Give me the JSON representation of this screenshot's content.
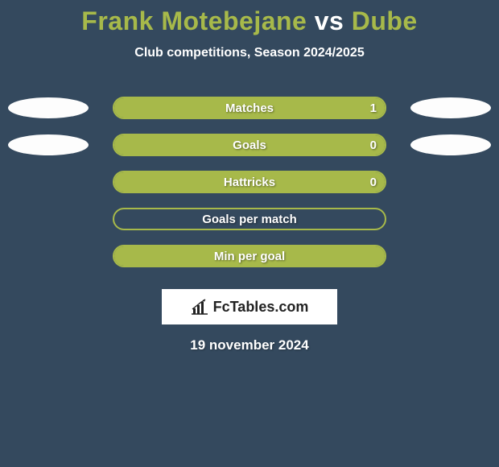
{
  "title": {
    "player1": "Frank Motebejane",
    "vs": "vs",
    "player2": "Dube",
    "player1_color": "#a7b94a",
    "vs_color": "#ffffff",
    "player2_color": "#a7b94a"
  },
  "subtitle": "Club competitions, Season 2024/2025",
  "background_color": "#34495e",
  "ellipse_color": "#fdfdfd",
  "bar_outer_width": 340,
  "rows": [
    {
      "label": "Matches",
      "value_right": "1",
      "fill_pct": 100,
      "border_color": "#a7b94a",
      "fill_color": "#a7b94a",
      "show_left_ellipse": true,
      "show_right_ellipse": true,
      "show_value": true
    },
    {
      "label": "Goals",
      "value_right": "0",
      "fill_pct": 100,
      "border_color": "#a7b94a",
      "fill_color": "#a7b94a",
      "show_left_ellipse": true,
      "show_right_ellipse": true,
      "show_value": true
    },
    {
      "label": "Hattricks",
      "value_right": "0",
      "fill_pct": 100,
      "border_color": "#a7b94a",
      "fill_color": "#a7b94a",
      "show_left_ellipse": false,
      "show_right_ellipse": false,
      "show_value": true
    },
    {
      "label": "Goals per match",
      "value_right": "",
      "fill_pct": 0,
      "border_color": "#a7b94a",
      "fill_color": "#a7b94a",
      "show_left_ellipse": false,
      "show_right_ellipse": false,
      "show_value": false
    },
    {
      "label": "Min per goal",
      "value_right": "",
      "fill_pct": 100,
      "border_color": "#a7b94a",
      "fill_color": "#a7b94a",
      "show_left_ellipse": false,
      "show_right_ellipse": false,
      "show_value": false
    }
  ],
  "logo": {
    "text": "FcTables.com",
    "icon_color": "#222222",
    "text_color": "#222222",
    "bg_color": "#ffffff"
  },
  "date": "19 november 2024"
}
